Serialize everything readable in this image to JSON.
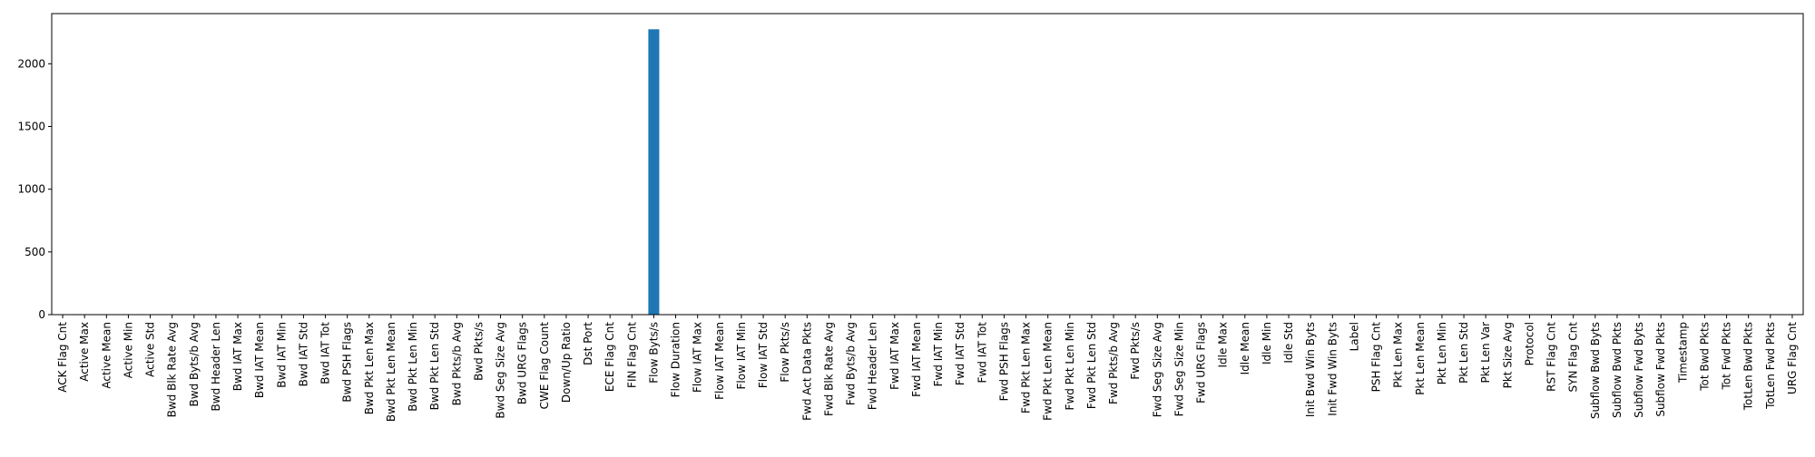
{
  "chart_data": {
    "type": "bar",
    "title": "",
    "xlabel": "",
    "ylabel": "",
    "ylim": [
      0,
      2400
    ],
    "yticks": [
      0,
      500,
      1000,
      1500,
      2000
    ],
    "grid": false,
    "bar_color": "#1f77b4",
    "categories": [
      "ACK Flag Cnt",
      "Active Max",
      "Active Mean",
      "Active Min",
      "Active Std",
      "Bwd Blk Rate Avg",
      "Bwd Byts/b Avg",
      "Bwd Header Len",
      "Bwd IAT Max",
      "Bwd IAT Mean",
      "Bwd IAT Min",
      "Bwd IAT Std",
      "Bwd IAT Tot",
      "Bwd PSH Flags",
      "Bwd Pkt Len Max",
      "Bwd Pkt Len Mean",
      "Bwd Pkt Len Min",
      "Bwd Pkt Len Std",
      "Bwd Pkts/b Avg",
      "Bwd Pkts/s",
      "Bwd Seg Size Avg",
      "Bwd URG Flags",
      "CWE Flag Count",
      "Down/Up Ratio",
      "Dst Port",
      "ECE Flag Cnt",
      "FIN Flag Cnt",
      "Flow Byts/s",
      "Flow Duration",
      "Flow IAT Max",
      "Flow IAT Mean",
      "Flow IAT Min",
      "Flow IAT Std",
      "Flow Pkts/s",
      "Fwd Act Data Pkts",
      "Fwd Blk Rate Avg",
      "Fwd Byts/b Avg",
      "Fwd Header Len",
      "Fwd IAT Max",
      "Fwd IAT Mean",
      "Fwd IAT Min",
      "Fwd IAT Std",
      "Fwd IAT Tot",
      "Fwd PSH Flags",
      "Fwd Pkt Len Max",
      "Fwd Pkt Len Mean",
      "Fwd Pkt Len Min",
      "Fwd Pkt Len Std",
      "Fwd Pkts/b Avg",
      "Fwd Pkts/s",
      "Fwd Seg Size Avg",
      "Fwd Seg Size Min",
      "Fwd URG Flags",
      "Idle Max",
      "Idle Mean",
      "Idle Min",
      "Idle Std",
      "Init Bwd Win Byts",
      "Init Fwd Win Byts",
      "Label",
      "PSH Flag Cnt",
      "Pkt Len Max",
      "Pkt Len Mean",
      "Pkt Len Min",
      "Pkt Len Std",
      "Pkt Len Var",
      "Pkt Size Avg",
      "Protocol",
      "RST Flag Cnt",
      "SYN Flag Cnt",
      "Subflow Bwd Byts",
      "Subflow Bwd Pkts",
      "Subflow Fwd Byts",
      "Subflow Fwd Pkts",
      "Timestamp",
      "Tot Bwd Pkts",
      "Tot Fwd Pkts",
      "TotLen Bwd Pkts",
      "TotLen Fwd Pkts",
      "URG Flag Cnt"
    ],
    "values": [
      0,
      0,
      0,
      0,
      0,
      0,
      0,
      0,
      0,
      0,
      0,
      0,
      0,
      0,
      0,
      0,
      0,
      0,
      0,
      0,
      0,
      0,
      0,
      0,
      0,
      0,
      0,
      2275,
      0,
      0,
      0,
      0,
      0,
      0,
      0,
      0,
      0,
      0,
      0,
      0,
      0,
      0,
      0,
      0,
      0,
      0,
      0,
      0,
      0,
      0,
      0,
      0,
      0,
      0,
      0,
      0,
      0,
      0,
      0,
      0,
      0,
      0,
      0,
      0,
      0,
      0,
      0,
      0,
      0,
      0,
      0,
      0,
      0,
      0,
      0,
      0,
      0,
      0,
      0,
      0
    ]
  }
}
